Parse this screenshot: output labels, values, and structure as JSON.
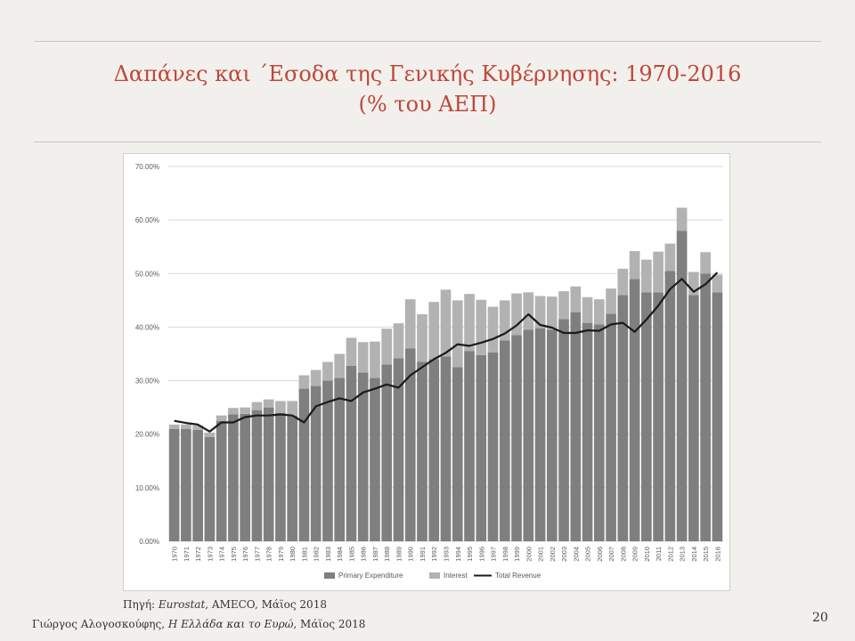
{
  "slide": {
    "title_line1": "Δαπάνες και ΄Εσοδα της Γενικής Κυβέρνησης: 1970-2016",
    "title_line2": "(% του ΑΕΠ)",
    "source_prefix": "Πηγή: ",
    "source_italic": "Eurostat",
    "source_rest": ", AMECO, Μάϊος 2018",
    "footer_author": "Γιώργος Αλογοσκούφης, ",
    "footer_italic": "Η Ελλάδα και το Ευρώ",
    "footer_rest": ", Μάϊος 2018",
    "page_number": "20",
    "title_color": "#c0473a"
  },
  "chart_data": {
    "type": "bar",
    "stacked": true,
    "categories": [
      "1970",
      "1971",
      "1972",
      "1973",
      "1974",
      "1975",
      "1976",
      "1977",
      "1978",
      "1979",
      "1980",
      "1981",
      "1982",
      "1983",
      "1984",
      "1985",
      "1986",
      "1987",
      "1988",
      "1989",
      "1990",
      "1991",
      "1992",
      "1993",
      "1994",
      "1995",
      "1996",
      "1997",
      "1998",
      "1999",
      "2000",
      "2001",
      "2002",
      "2003",
      "2004",
      "2005",
      "2006",
      "2007",
      "2008",
      "2009",
      "2010",
      "2011",
      "2012",
      "2013",
      "2014",
      "2015",
      "2016"
    ],
    "series": [
      {
        "name": "Primary Expenditure",
        "kind": "bar",
        "color": "#7f7f7f",
        "values": [
          21.0,
          21.0,
          20.8,
          19.5,
          22.5,
          23.7,
          23.8,
          24.5,
          25.0,
          24.0,
          23.5,
          28.5,
          29.0,
          30.0,
          30.5,
          32.8,
          31.5,
          30.5,
          33.0,
          34.2,
          36.0,
          33.5,
          34.0,
          34.5,
          32.5,
          35.5,
          34.8,
          35.3,
          37.5,
          38.5,
          39.5,
          39.8,
          39.5,
          41.5,
          42.8,
          40.8,
          40.5,
          42.5,
          46.0,
          49.0,
          46.5,
          46.5,
          50.5,
          58.0,
          46.0,
          50.0,
          46.5
        ]
      },
      {
        "name": "Interest",
        "kind": "bar",
        "color": "#b2b2b2",
        "values": [
          0.8,
          0.8,
          0.8,
          0.8,
          1.0,
          1.2,
          1.2,
          1.5,
          1.5,
          2.2,
          2.7,
          2.5,
          3.0,
          3.5,
          4.5,
          5.2,
          5.7,
          6.8,
          6.7,
          6.5,
          9.2,
          8.9,
          10.7,
          12.5,
          12.5,
          10.7,
          10.3,
          8.5,
          7.5,
          7.8,
          7.0,
          6.0,
          6.2,
          5.2,
          4.8,
          4.8,
          4.7,
          4.7,
          4.9,
          5.2,
          6.1,
          7.6,
          5.1,
          4.3,
          4.3,
          4.0,
          3.3
        ]
      },
      {
        "name": "Total Revenue",
        "kind": "line",
        "color": "#1a1a1a",
        "values": [
          22.5,
          22.1,
          21.8,
          20.5,
          22.2,
          22.2,
          23.2,
          23.5,
          23.5,
          23.7,
          23.5,
          22.2,
          25.2,
          26.0,
          26.7,
          26.2,
          27.8,
          28.5,
          29.3,
          28.7,
          31.0,
          32.5,
          34.0,
          35.2,
          36.8,
          36.5,
          37.1,
          37.8,
          38.8,
          40.3,
          42.4,
          40.4,
          39.9,
          38.9,
          38.9,
          39.4,
          39.3,
          40.5,
          40.8,
          39.1,
          41.4,
          44.0,
          47.1,
          49.0,
          46.6,
          48.0,
          50.2
        ]
      }
    ],
    "ylim": [
      0,
      70
    ],
    "yticks": [
      "0.00%",
      "10.00%",
      "20.00%",
      "30.00%",
      "40.00%",
      "50.00%",
      "60.00%",
      "70.00%"
    ],
    "grid": true,
    "legend_position": "bottom"
  }
}
